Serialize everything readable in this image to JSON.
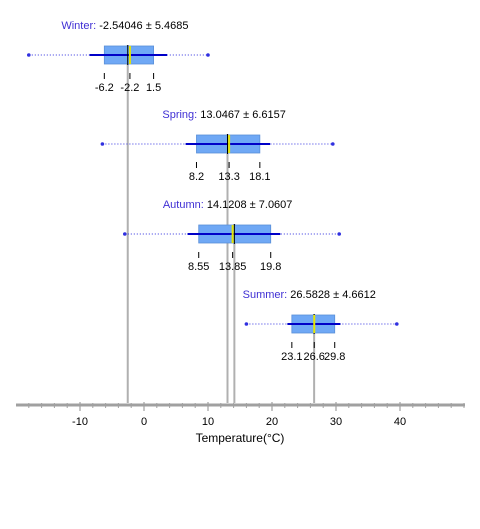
{
  "chart_data": {
    "type": "box",
    "xlabel": "Temperature(°C)",
    "x_ticks": [
      -10,
      0,
      10,
      20,
      30,
      40
    ],
    "xlim": [
      -20,
      50
    ],
    "colors": {
      "box_fill": "#6fa8f5",
      "box_edge": "#5a8fd8",
      "whisker": "#0000c8",
      "range": "#3030e0",
      "median": "#e6e600",
      "mean_line": "#b0b0b0",
      "axis": "#a0a0a0",
      "name": "#3f2fd4"
    },
    "series": [
      {
        "name": "Winter",
        "mean_label": "-2.54046",
        "sd_label": "5.4685",
        "mean": -2.54046,
        "sd": 5.4685,
        "min": -18,
        "max": 10,
        "q1": -6.2,
        "median": -2.2,
        "q3": 1.5,
        "whisker_low": -8.5,
        "whisker_high": 3.6,
        "q1_label": "-6.2",
        "median_label": "-2.2",
        "q3_label": "1.5"
      },
      {
        "name": "Spring",
        "mean_label": "13.0467",
        "sd_label": "6.6157",
        "mean": 13.0467,
        "sd": 6.6157,
        "min": -6.5,
        "max": 29.5,
        "q1": 8.2,
        "median": 13.3,
        "q3": 18.1,
        "whisker_low": 6.5,
        "whisker_high": 19.7,
        "q1_label": "8.2",
        "median_label": "13.3",
        "q3_label": "18.1"
      },
      {
        "name": "Autumn",
        "mean_label": "14.1208",
        "sd_label": "7.0607",
        "mean": 14.1208,
        "sd": 7.0607,
        "min": -3,
        "max": 30.5,
        "q1": 8.55,
        "median": 13.85,
        "q3": 19.8,
        "whisker_low": 6.8,
        "whisker_high": 21.3,
        "q1_label": "8.55",
        "median_label": "13.85",
        "q3_label": "19.8"
      },
      {
        "name": "Summer",
        "mean_label": "26.5828",
        "sd_label": "4.6612",
        "mean": 26.5828,
        "sd": 4.6612,
        "min": 16,
        "max": 39.5,
        "q1": 23.1,
        "median": 26.6,
        "q3": 29.8,
        "whisker_low": 22.4,
        "whisker_high": 30.7,
        "q1_label": "23.1",
        "median_label": "26.6",
        "q3_label": "29.8"
      }
    ]
  }
}
